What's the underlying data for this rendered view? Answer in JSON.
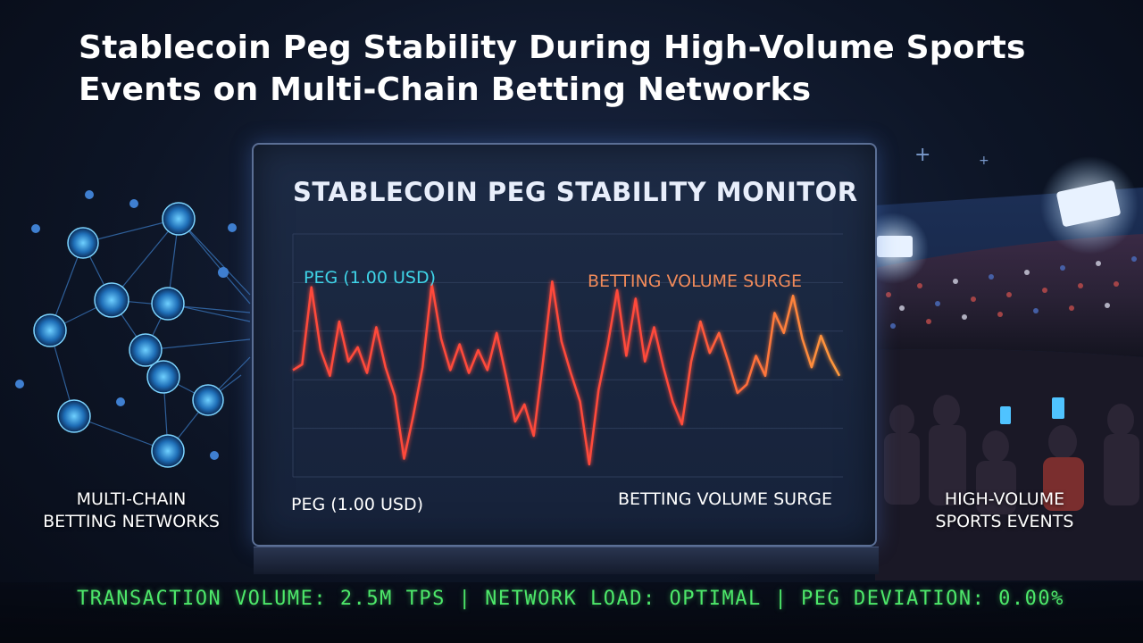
{
  "page": {
    "title": "Stablecoin Peg Stability During High-Volume Sports Events on Multi-Chain Betting Networks"
  },
  "monitor": {
    "title": "STABLECOIN PEG STABILITY MONITOR",
    "label_peg_top": "PEG (1.00 USD)",
    "label_surge_top": "BETTING VOLUME SURGE",
    "label_peg_bottom": "PEG (1.00 USD)",
    "label_surge_bottom": "BETTING VOLUME SURGE"
  },
  "side_labels": {
    "left": "MULTI-CHAIN\nBETTING NETWORKS",
    "right": "HIGH-VOLUME\nSPORTS EVENTS"
  },
  "status_bar": {
    "text": "TRANSACTION VOLUME: 2.5M TPS | NETWORK LOAD: OPTIMAL | PEG DEVIATION: 0.00%"
  },
  "chart_data": {
    "type": "line",
    "peg_value": 0,
    "series": [
      {
        "values": [
          0.3,
          0.5,
          3.2,
          1.0,
          0.1,
          2.0,
          0.6,
          1.1,
          0.2,
          1.8,
          0.4,
          -0.6,
          -2.8,
          -1.3,
          0.4,
          3.3,
          1.4,
          0.3,
          1.2,
          0.2,
          1.0,
          0.3,
          1.6,
          0.1,
          -1.5,
          -0.9,
          -2.0,
          0.6,
          3.4,
          1.3,
          0.2,
          -0.8,
          -3.0,
          -0.4,
          1.2,
          3.1,
          0.8,
          2.8,
          0.6,
          1.8,
          0.4,
          -0.8,
          -1.6,
          0.6,
          2.0,
          0.9,
          1.6,
          0.6,
          -0.5,
          -0.2,
          0.8,
          0.1,
          2.3,
          1.6,
          2.9,
          1.4,
          0.4,
          1.5,
          0.7,
          0.1
        ],
        "color_start": "#ff4a3a",
        "color_end": "#ff9a3c"
      }
    ],
    "colors": {
      "peg_line": "#38d0ff",
      "grid": "#2d3c5a"
    },
    "grid": true
  },
  "colors": {
    "accent_cyan": "#3fd4e8",
    "accent_orange": "#f08a5a",
    "status_green": "#4de86a"
  }
}
